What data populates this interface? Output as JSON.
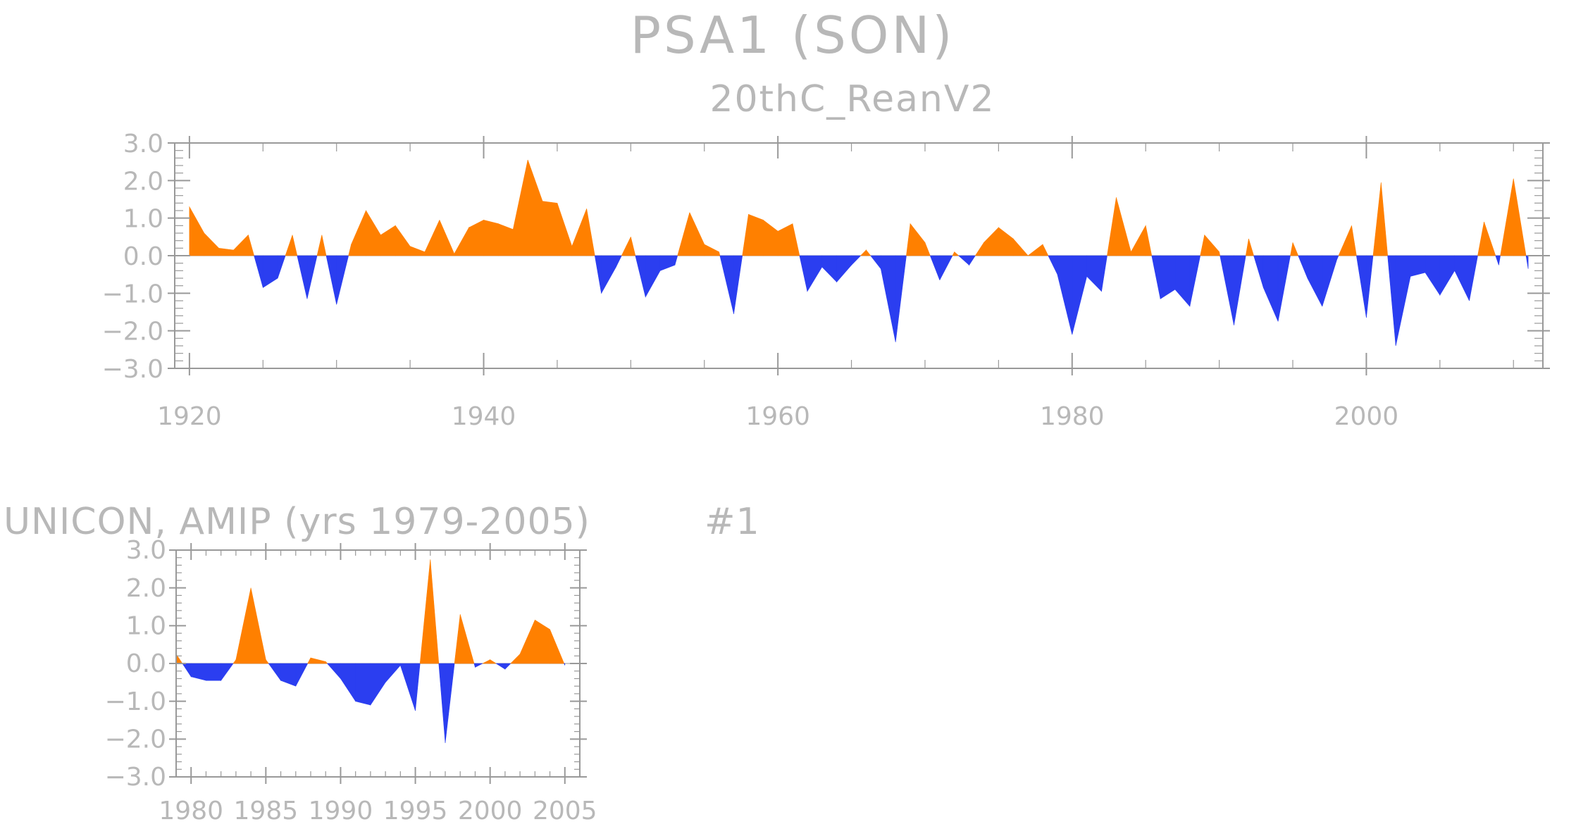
{
  "figure": {
    "main_title": "PSA1 (SON)",
    "panel_label": "#1"
  },
  "colors": {
    "positive": "#ff8000",
    "negative": "#2b3ef0",
    "text": "#b8b8b8",
    "axis": "#999999"
  },
  "chart_data": [
    {
      "type": "area",
      "title": "20thC_ReanV2",
      "xlim": [
        1919,
        2012
      ],
      "ylim": [
        -3,
        3
      ],
      "xticks": [
        1920,
        1940,
        1960,
        1980,
        2000
      ],
      "xtick_labels": [
        "1920",
        "1940",
        "1960",
        "1980",
        "2000"
      ],
      "yticks": [
        -3,
        -2,
        -1,
        0,
        1,
        2,
        3
      ],
      "ytick_labels": [
        "−3.0",
        "−2.0",
        "−1.0",
        "0.0",
        "1.0",
        "2.0",
        "3.0"
      ],
      "fill_above_zero": "#ff8000",
      "fill_below_zero": "#2b3ef0",
      "x": [
        1920,
        1921,
        1922,
        1923,
        1924,
        1925,
        1926,
        1927,
        1928,
        1929,
        1930,
        1931,
        1932,
        1933,
        1934,
        1935,
        1936,
        1937,
        1938,
        1939,
        1940,
        1941,
        1942,
        1943,
        1944,
        1945,
        1946,
        1947,
        1948,
        1949,
        1950,
        1951,
        1952,
        1953,
        1954,
        1955,
        1956,
        1957,
        1958,
        1959,
        1960,
        1961,
        1962,
        1963,
        1964,
        1965,
        1966,
        1967,
        1968,
        1969,
        1970,
        1971,
        1972,
        1973,
        1974,
        1975,
        1976,
        1977,
        1978,
        1979,
        1980,
        1981,
        1982,
        1983,
        1984,
        1985,
        1986,
        1987,
        1988,
        1989,
        1990,
        1991,
        1992,
        1993,
        1994,
        1995,
        1996,
        1997,
        1998,
        1999,
        2000,
        2001,
        2002,
        2003,
        2004,
        2005,
        2006,
        2007,
        2008,
        2009,
        2010,
        2011
      ],
      "y": [
        1.3,
        0.6,
        0.2,
        0.15,
        0.55,
        -0.85,
        -0.6,
        0.55,
        -1.15,
        0.55,
        -1.3,
        0.3,
        1.2,
        0.55,
        0.8,
        0.25,
        0.1,
        0.95,
        0.05,
        0.75,
        0.95,
        0.85,
        0.7,
        2.55,
        1.45,
        1.4,
        0.25,
        1.25,
        -1.0,
        -0.3,
        0.5,
        -1.1,
        -0.4,
        -0.25,
        1.15,
        0.3,
        0.1,
        -1.55,
        1.1,
        0.95,
        0.65,
        0.85,
        -0.95,
        -0.3,
        -0.7,
        -0.25,
        0.15,
        -0.35,
        -2.3,
        0.85,
        0.35,
        -0.65,
        0.1,
        -0.25,
        0.35,
        0.75,
        0.45,
        0.0,
        0.3,
        -0.5,
        -2.1,
        -0.55,
        -0.95,
        1.55,
        0.1,
        0.8,
        -1.15,
        -0.9,
        -1.35,
        0.55,
        0.1,
        -1.85,
        0.45,
        -0.85,
        -1.75,
        0.35,
        -0.6,
        -1.35,
        -0.1,
        0.8,
        -1.65,
        1.95,
        -2.4,
        -0.55,
        -0.45,
        -1.05,
        -0.4,
        -1.2,
        0.9,
        -0.25,
        2.05,
        -0.35
      ]
    },
    {
      "type": "area",
      "title": "UNICON, AMIP (yrs 1979-2005)",
      "xlim": [
        1979,
        2006
      ],
      "ylim": [
        -3,
        3
      ],
      "xticks": [
        1980,
        1985,
        1990,
        1995,
        2000,
        2005
      ],
      "xtick_labels": [
        "1980",
        "1985",
        "1990",
        "1995",
        "2000",
        "2005"
      ],
      "yticks": [
        -3,
        -2,
        -1,
        0,
        1,
        2,
        3
      ],
      "ytick_labels": [
        "−3.0",
        "−2.0",
        "−1.0",
        "0.0",
        "1.0",
        "2.0",
        "3.0"
      ],
      "fill_above_zero": "#ff8000",
      "fill_below_zero": "#2b3ef0",
      "x": [
        1979,
        1980,
        1981,
        1982,
        1983,
        1984,
        1985,
        1986,
        1987,
        1988,
        1989,
        1990,
        1991,
        1992,
        1993,
        1994,
        1995,
        1996,
        1997,
        1998,
        1999,
        2000,
        2001,
        2002,
        2003,
        2004,
        2005
      ],
      "y": [
        0.25,
        -0.35,
        -0.45,
        -0.45,
        0.1,
        2.0,
        0.1,
        -0.45,
        -0.6,
        0.15,
        0.05,
        -0.4,
        -1.0,
        -1.1,
        -0.5,
        -0.05,
        -1.25,
        2.75,
        -2.1,
        1.3,
        -0.1,
        0.1,
        -0.15,
        0.25,
        1.15,
        0.9,
        -0.05
      ]
    }
  ]
}
